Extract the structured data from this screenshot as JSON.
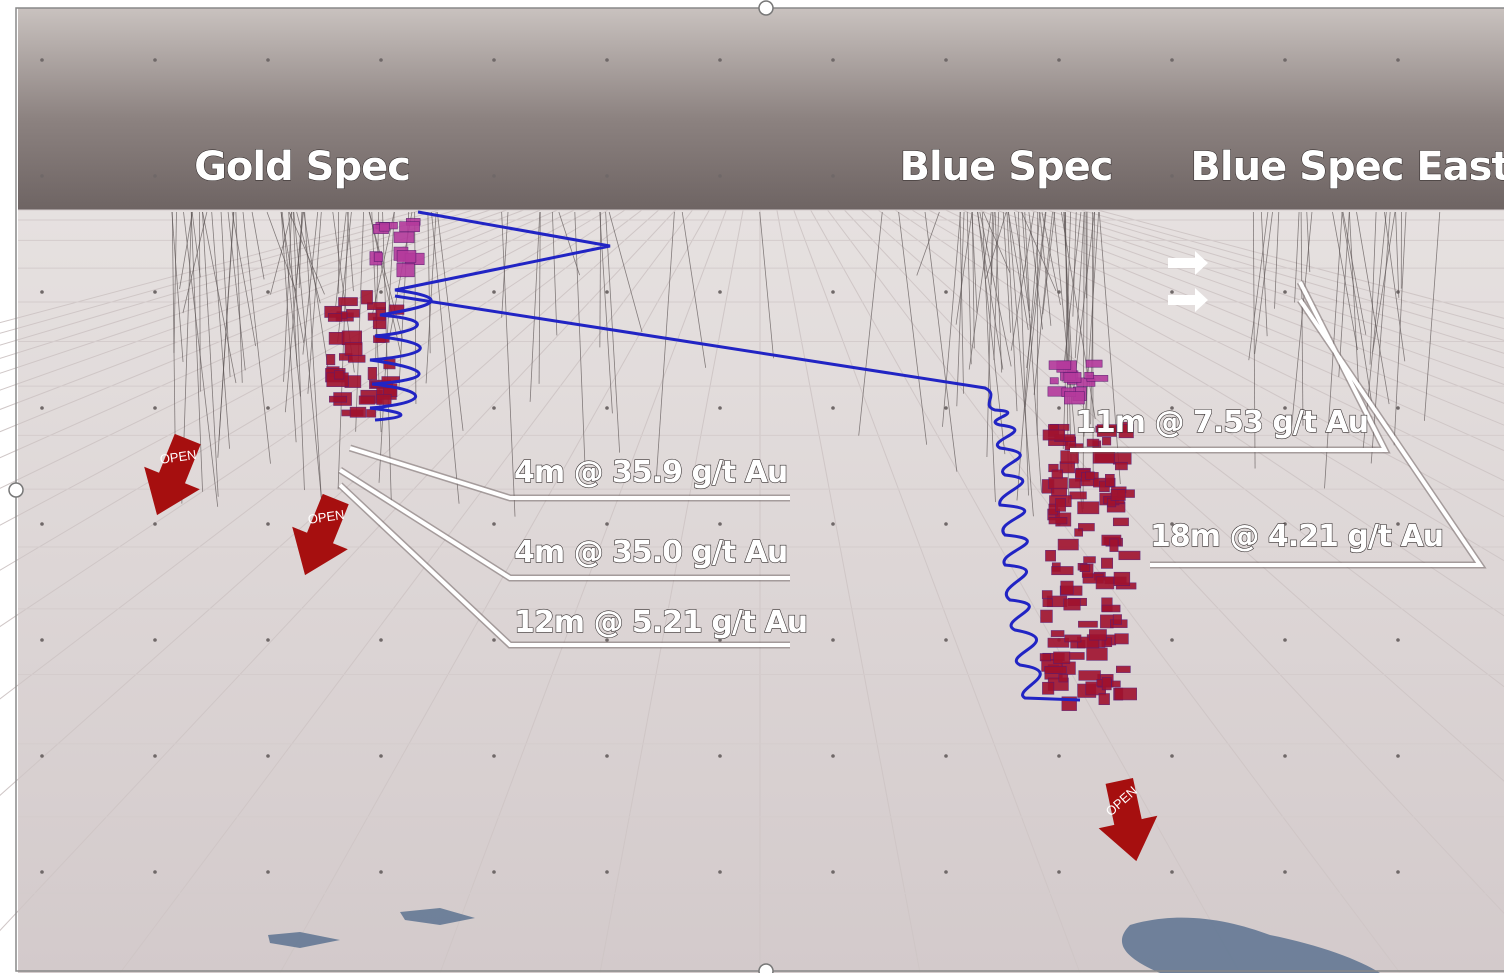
{
  "deposits": [
    "Gold Spec",
    "Blue Spec",
    "Blue Spec East"
  ],
  "intercepts": [
    "4m @ 35.9 g/t Au",
    "4m @ 35.0 g/t Au",
    "12m @ 5.21 g/t Au",
    "11m @ 7.53 g/t Au",
    "18m @ 4.21 g/t Au"
  ],
  "open_arrows": [
    "OPEN",
    "OPEN",
    "OPEN"
  ]
}
